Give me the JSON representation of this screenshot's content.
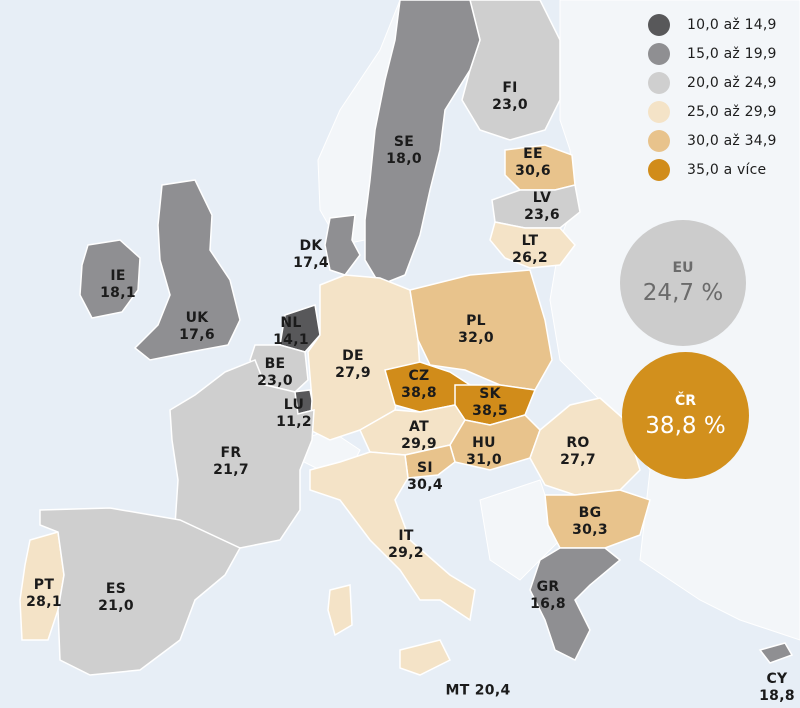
{
  "legend": {
    "items": [
      {
        "label": "10,0 až 14,9",
        "color": "#58585a"
      },
      {
        "label": "15,0 až 19,9",
        "color": "#8f8f92"
      },
      {
        "label": "20,0 až 24,9",
        "color": "#cfcfcf"
      },
      {
        "label": "25,0 až 29,9",
        "color": "#f4e3c7"
      },
      {
        "label": "30,0 až 34,9",
        "color": "#e8c38c"
      },
      {
        "label": "35,0 a více",
        "color": "#d18c1a"
      }
    ]
  },
  "eu": {
    "label": "EU",
    "value": "24,7 %"
  },
  "cr": {
    "label": "ČR",
    "value": "38,8 %"
  },
  "countries": {
    "FI": {
      "code": "FI",
      "value": "23,0",
      "class": "20,0 až 24,9"
    },
    "SE": {
      "code": "SE",
      "value": "18,0",
      "class": "15,0 až 19,9"
    },
    "EE": {
      "code": "EE",
      "value": "30,6",
      "class": "30,0 až 34,9"
    },
    "LV": {
      "code": "LV",
      "value": "23,6",
      "class": "20,0 až 24,9"
    },
    "LT": {
      "code": "LT",
      "value": "26,2",
      "class": "25,0 až 29,9"
    },
    "DK": {
      "code": "DK",
      "value": "17,4",
      "class": "15,0 až 19,9"
    },
    "IE": {
      "code": "IE",
      "value": "18,1",
      "class": "15,0 až 19,9"
    },
    "UK": {
      "code": "UK",
      "value": "17,6",
      "class": "15,0 až 19,9"
    },
    "NL": {
      "code": "NL",
      "value": "14,1",
      "class": "10,0 až 14,9"
    },
    "BE": {
      "code": "BE",
      "value": "23,0",
      "class": "20,0 až 24,9"
    },
    "LU": {
      "code": "LU",
      "value": "11,2",
      "class": "10,0 až 14,9"
    },
    "DE": {
      "code": "DE",
      "value": "27,9",
      "class": "25,0 až 29,9"
    },
    "PL": {
      "code": "PL",
      "value": "32,0",
      "class": "30,0 až 34,9"
    },
    "CZ": {
      "code": "CZ",
      "value": "38,8",
      "class": "35,0 a více"
    },
    "SK": {
      "code": "SK",
      "value": "38,5",
      "class": "35,0 a více"
    },
    "AT": {
      "code": "AT",
      "value": "29,9",
      "class": "25,0 až 29,9"
    },
    "HU": {
      "code": "HU",
      "value": "31,0",
      "class": "30,0 až 34,9"
    },
    "SI": {
      "code": "SI",
      "value": "30,4",
      "class": "30,0 až 34,9"
    },
    "FR": {
      "code": "FR",
      "value": "21,7",
      "class": "20,0 až 24,9"
    },
    "RO": {
      "code": "RO",
      "value": "27,7",
      "class": "25,0 až 29,9"
    },
    "BG": {
      "code": "BG",
      "value": "30,3",
      "class": "30,0 až 34,9"
    },
    "IT": {
      "code": "IT",
      "value": "29,2",
      "class": "25,0 až 29,9"
    },
    "PT": {
      "code": "PT",
      "value": "28,1",
      "class": "25,0 až 29,9"
    },
    "ES": {
      "code": "ES",
      "value": "21,0",
      "class": "20,0 až 24,9"
    },
    "GR": {
      "code": "GR",
      "value": "16,8",
      "class": "15,0 až 19,9"
    },
    "MT": {
      "code": "MT",
      "value": "20,4",
      "class": "20,0 až 24,9"
    },
    "CY": {
      "code": "CY",
      "value": "18,8",
      "class": "15,0 až 19,9"
    }
  }
}
